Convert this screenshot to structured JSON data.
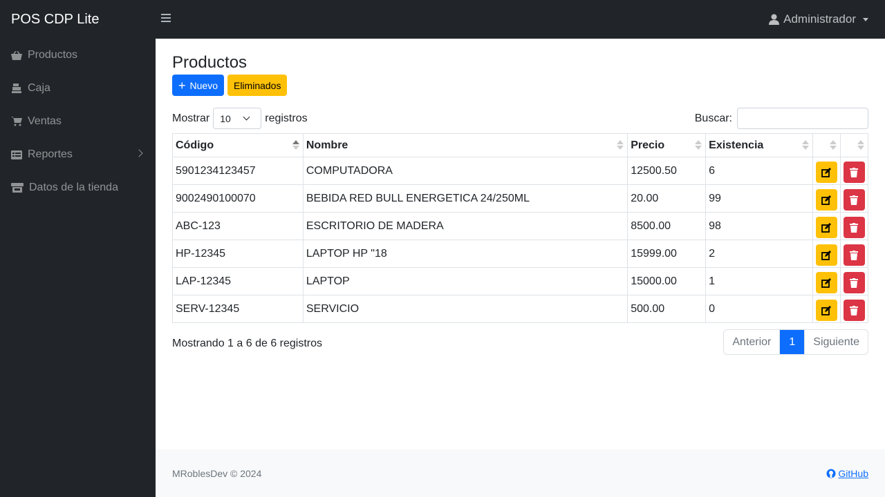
{
  "brand": "POS CDP Lite",
  "user": {
    "name": "Administrador",
    "icon": "user-icon"
  },
  "sidebar": {
    "items": [
      {
        "label": "Productos",
        "icon": "basket-icon"
      },
      {
        "label": "Caja",
        "icon": "cash-register-icon"
      },
      {
        "label": "Ventas",
        "icon": "cart-icon"
      },
      {
        "label": "Reportes",
        "icon": "table-icon"
      },
      {
        "label": "Datos de la tienda",
        "icon": "store-icon"
      }
    ]
  },
  "page": {
    "title": "Productos",
    "new_label": "Nuevo",
    "deleted_label": "Eliminados",
    "show_label": "Mostrar",
    "page_size": "10",
    "records_label": "registros",
    "search_label": "Buscar:",
    "search_value": ""
  },
  "table": {
    "headers": {
      "code": "Código",
      "name": "Nombre",
      "price": "Precio",
      "stock": "Existencia"
    },
    "rows": [
      {
        "code": "5901234123457",
        "name": "COMPUTADORA",
        "price": "12500.50",
        "stock": "6"
      },
      {
        "code": "9002490100070",
        "name": "BEBIDA RED BULL ENERGETICA 24/250ML",
        "price": "20.00",
        "stock": "99"
      },
      {
        "code": "ABC-123",
        "name": "ESCRITORIO DE MADERA",
        "price": "8500.00",
        "stock": "98"
      },
      {
        "code": "HP-12345",
        "name": "LAPTOP HP \"18",
        "price": "15999.00",
        "stock": "2"
      },
      {
        "code": "LAP-12345",
        "name": "LAPTOP",
        "price": "15000.00",
        "stock": "1"
      },
      {
        "code": "SERV-12345",
        "name": "SERVICIO",
        "price": "500.00",
        "stock": "0"
      }
    ]
  },
  "pagination": {
    "info": "Mostrando 1 a 6 de 6 registros",
    "prev": "Anterior",
    "current": "1",
    "next": "Siguiente"
  },
  "footer": {
    "copyright": "MRoblesDev © 2024",
    "github": "GitHub"
  },
  "colors": {
    "dark": "#212529",
    "primary": "#0d6efd",
    "warning": "#ffc107",
    "danger": "#dc3545"
  }
}
